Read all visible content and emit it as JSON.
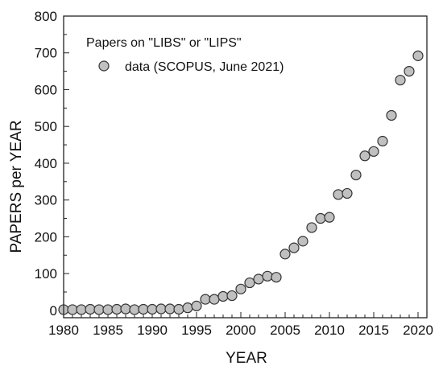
{
  "chart_data": {
    "type": "scatter",
    "title": "",
    "xlabel": "YEAR",
    "ylabel": "PAPERS per YEAR",
    "xlim": [
      1980,
      2021
    ],
    "ylim": [
      -20,
      800
    ],
    "x_ticks": [
      1980,
      1985,
      1990,
      1995,
      2000,
      2005,
      2010,
      2015,
      2020
    ],
    "y_ticks": [
      0,
      100,
      200,
      300,
      400,
      500,
      600,
      700,
      800
    ],
    "grid": false,
    "legend": {
      "placement": "top-left",
      "title": "Papers on \"LIBS\" or \"LIPS\"",
      "entries": [
        "data (SCOPUS, June 2021)"
      ]
    },
    "series": [
      {
        "name": "data (SCOPUS, June 2021)",
        "marker": "circle",
        "color": "#c0c0c0",
        "edge_color": "#333333",
        "x": [
          1980,
          1981,
          1982,
          1983,
          1984,
          1985,
          1986,
          1987,
          1988,
          1989,
          1990,
          1991,
          1992,
          1993,
          1994,
          1995,
          1996,
          1997,
          1998,
          1999,
          2000,
          2001,
          2002,
          2003,
          2004,
          2005,
          2006,
          2007,
          2008,
          2009,
          2010,
          2011,
          2012,
          2013,
          2014,
          2015,
          2016,
          2017,
          2018,
          2019,
          2020
        ],
        "y": [
          2,
          2,
          2,
          3,
          2,
          2,
          3,
          4,
          2,
          3,
          3,
          4,
          4,
          3,
          7,
          12,
          30,
          30,
          38,
          40,
          58,
          75,
          85,
          93,
          90,
          153,
          170,
          188,
          225,
          250,
          253,
          315,
          318,
          368,
          420,
          432,
          460,
          530,
          626,
          650,
          692
        ]
      }
    ]
  }
}
